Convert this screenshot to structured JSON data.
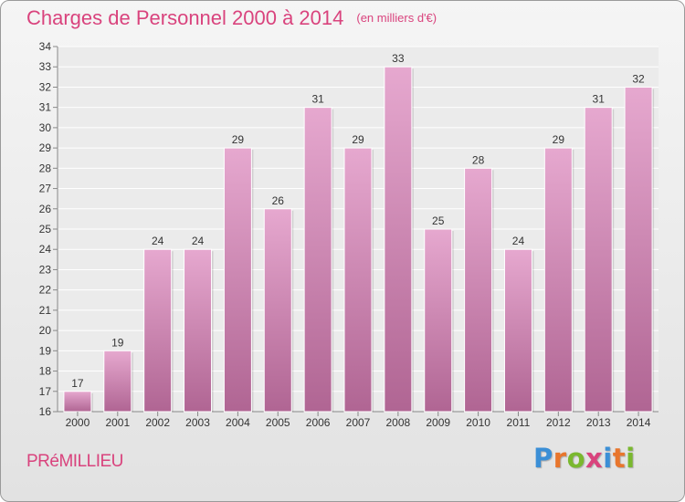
{
  "header": {
    "title": "Charges de Personnel 2000 à 2014",
    "subtitle": "(en milliers d'€)"
  },
  "footer": {
    "commune": "PRéMILLIEU",
    "brand_letters": [
      "P",
      "r",
      "o",
      "x",
      "i",
      "t",
      "i"
    ],
    "brand_colors": [
      "#3b8fd6",
      "#e8762d",
      "#7ab82f",
      "#d9437d",
      "#3b8fd6",
      "#e8762d",
      "#7ab82f"
    ]
  },
  "chart_data": {
    "type": "bar",
    "title": "Charges de Personnel 2000 à 2014",
    "subtitle": "(en milliers d'€)",
    "categories": [
      "2000",
      "2001",
      "2002",
      "2003",
      "2004",
      "2005",
      "2006",
      "2007",
      "2008",
      "2009",
      "2010",
      "2011",
      "2012",
      "2013",
      "2014"
    ],
    "values": [
      17,
      19,
      24,
      24,
      29,
      26,
      31,
      29,
      33,
      25,
      28,
      24,
      29,
      31,
      32
    ],
    "ylim": [
      16,
      34
    ],
    "yticks": [
      16,
      17,
      18,
      19,
      20,
      21,
      22,
      23,
      24,
      25,
      26,
      27,
      28,
      29,
      30,
      31,
      32,
      33,
      34
    ],
    "grid": "horizontal",
    "bar_color_top": "#e6a8cf",
    "bar_color_bottom": "#b06593"
  }
}
